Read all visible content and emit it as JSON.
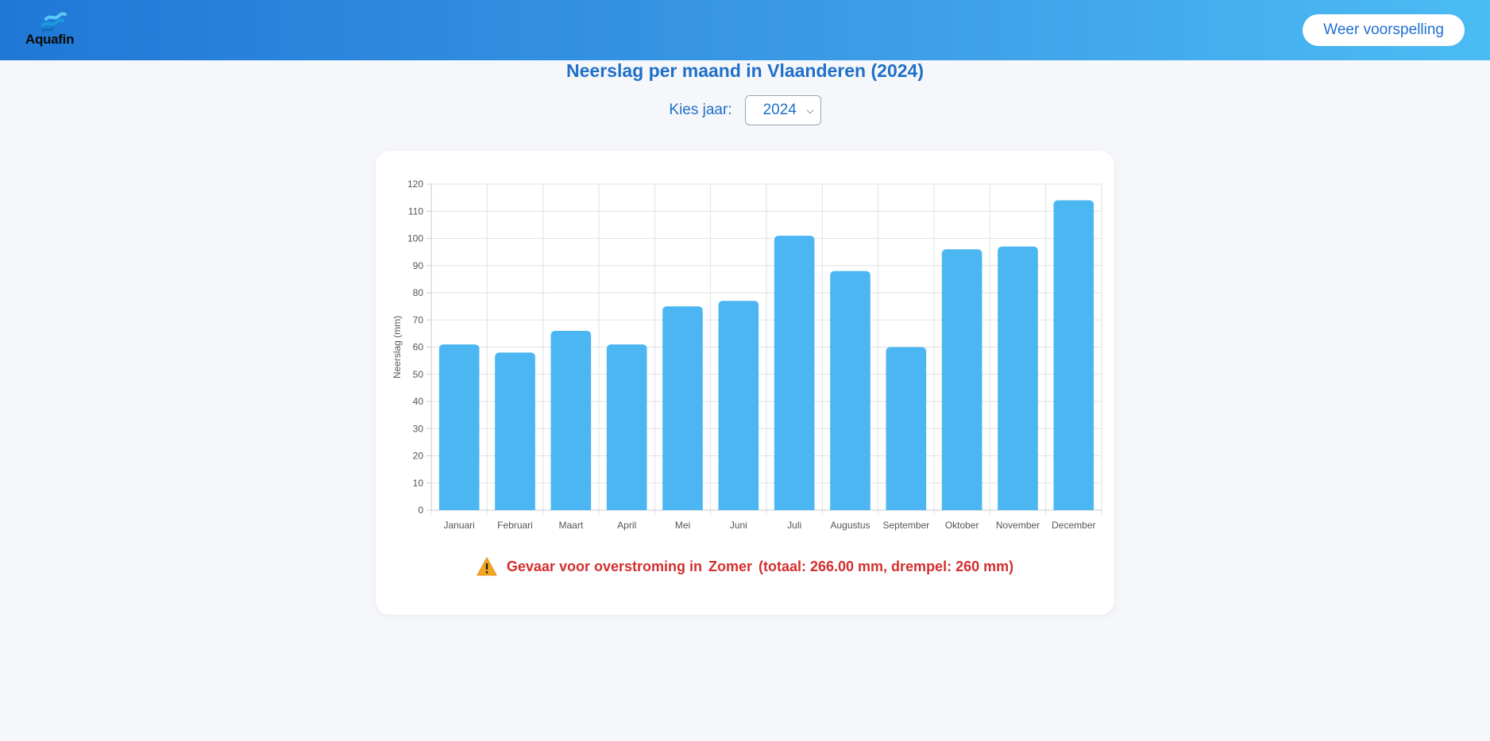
{
  "header": {
    "logo_text": "Aquafin",
    "forecast_button": "Weer voorspelling"
  },
  "page": {
    "title": "Neerslag per maand in Vlaanderen (2024)",
    "year_label": "Kies jaar:",
    "selected_year": "2024"
  },
  "colors": {
    "bar": "#4bb6f2",
    "title": "#1f6fc9",
    "warning": "#d32f2f"
  },
  "chart_data": {
    "type": "bar",
    "categories": [
      "Januari",
      "Februari",
      "Maart",
      "April",
      "Mei",
      "Juni",
      "Juli",
      "Augustus",
      "September",
      "Oktober",
      "November",
      "December"
    ],
    "values": [
      61,
      58,
      66,
      61,
      75,
      77,
      101,
      88,
      60,
      96,
      97,
      114
    ],
    "ylabel": "Neerslag (mm)",
    "xlabel": "",
    "ylim": [
      0,
      120
    ],
    "yticks": [
      0,
      10,
      20,
      30,
      40,
      50,
      60,
      70,
      80,
      90,
      100,
      110,
      120
    ],
    "grid": true,
    "legend": "none"
  },
  "warning": {
    "icon": "warning-icon",
    "prefix": "Gevaar voor overstroming in",
    "season": "Zomer",
    "details": "(totaal: 266.00 mm, drempel: 260 mm)"
  }
}
